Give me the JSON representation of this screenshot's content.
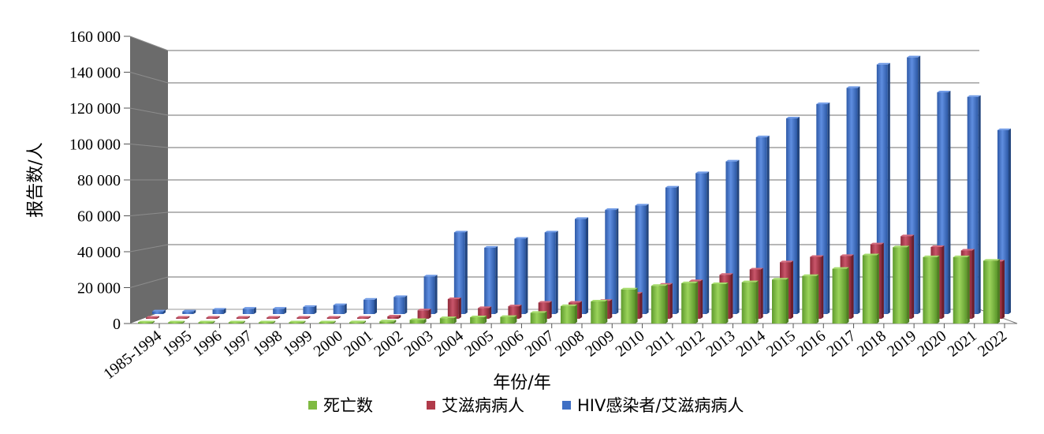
{
  "chart_data": {
    "type": "bar",
    "xlabel": "年份/年",
    "ylabel": "报告数/人",
    "ylim": [
      0,
      160000
    ],
    "yticks": [
      "0",
      "20 000",
      "40 000",
      "60 000",
      "80 000",
      "100 000",
      "120 000",
      "140 000",
      "160 000"
    ],
    "ytick_values": [
      0,
      20000,
      40000,
      60000,
      80000,
      100000,
      120000,
      140000,
      160000
    ],
    "grid": true,
    "legend_position": "bottom",
    "categories": [
      "1985-1994",
      "1995",
      "1996",
      "1997",
      "1998",
      "1999",
      "2000",
      "2001",
      "2002",
      "2003",
      "2004",
      "2005",
      "2006",
      "2007",
      "2008",
      "2009",
      "2010",
      "2011",
      "2012",
      "2013",
      "2014",
      "2015",
      "2016",
      "2017",
      "2018",
      "2019",
      "2020",
      "2021",
      "2022"
    ],
    "series": [
      {
        "name": "死亡数",
        "color": "#7fba42",
        "values": [
          500,
          200,
          300,
          300,
          300,
          400,
          500,
          700,
          1200,
          2000,
          3000,
          3500,
          3700,
          6000,
          9700,
          12300,
          19000,
          21000,
          22500,
          22000,
          23000,
          24500,
          26500,
          30500,
          38000,
          42500,
          37000,
          37000,
          35000
        ]
      },
      {
        "name": "艾滋病病人",
        "color": "#b03a4a",
        "values": [
          100,
          100,
          100,
          100,
          100,
          100,
          100,
          300,
          1300,
          4700,
          11000,
          6000,
          7000,
          9000,
          9000,
          10000,
          14000,
          19000,
          21000,
          24500,
          27500,
          31500,
          34500,
          35000,
          41500,
          46000,
          40000,
          38000,
          32000
        ]
      },
      {
        "name": "HIV感染者/艾滋病病人",
        "color": "#3f6fc4",
        "values": [
          1500,
          1500,
          2500,
          3000,
          3000,
          4000,
          5000,
          8000,
          9500,
          21000,
          45500,
          37000,
          42000,
          45500,
          53000,
          58000,
          60500,
          70500,
          78500,
          85000,
          98500,
          109000,
          117000,
          126000,
          139000,
          143000,
          123500,
          121000,
          102500
        ]
      }
    ]
  }
}
